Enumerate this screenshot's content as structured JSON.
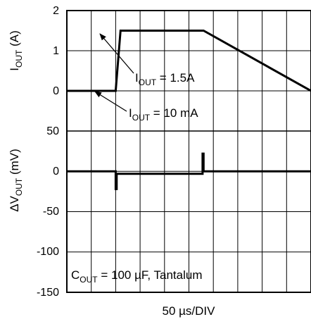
{
  "chart_data": [
    {
      "type": "line",
      "panel": "top",
      "ylabel_main": "I",
      "ylabel_sub": "OUT",
      "ylabel_unit": " (A)",
      "ylim": [
        0,
        2
      ],
      "yticks": [
        "2",
        "1",
        "0"
      ],
      "xlim": [
        0,
        500
      ],
      "x_units": "µs",
      "grid": true,
      "series": [
        {
          "x": [
            0,
            50,
            100,
            110,
            280,
            500
          ],
          "y": [
            0,
            0,
            0,
            1.5,
            1.5,
            0
          ]
        }
      ],
      "annotations": [
        {
          "main": "I",
          "sub": "OUT",
          "rest": " = 1.5A"
        },
        {
          "main": "I",
          "sub": "OUT",
          "rest": " = 10 mA"
        }
      ]
    },
    {
      "type": "line",
      "panel": "bottom",
      "ylabel_main": "ΔV",
      "ylabel_sub": "OUT",
      "ylabel_unit": " (mV)",
      "ylim": [
        -150,
        50
      ],
      "yticks": [
        "50",
        "0",
        "-50",
        "-100",
        "-150"
      ],
      "xlim": [
        0,
        500
      ],
      "x_units": "µs",
      "grid": true,
      "series": [
        {
          "x": [
            0,
            100,
            100,
            102,
            102,
            278,
            278,
            280,
            280,
            500
          ],
          "y": [
            0,
            0,
            -22,
            -22,
            -3,
            -3,
            22,
            22,
            0,
            0
          ]
        }
      ],
      "annotations": [
        {
          "main": "C",
          "sub": "OUT",
          "rest": " = 100 µF, Tantalum"
        }
      ]
    }
  ],
  "xlabel": "50 µs/DIV"
}
